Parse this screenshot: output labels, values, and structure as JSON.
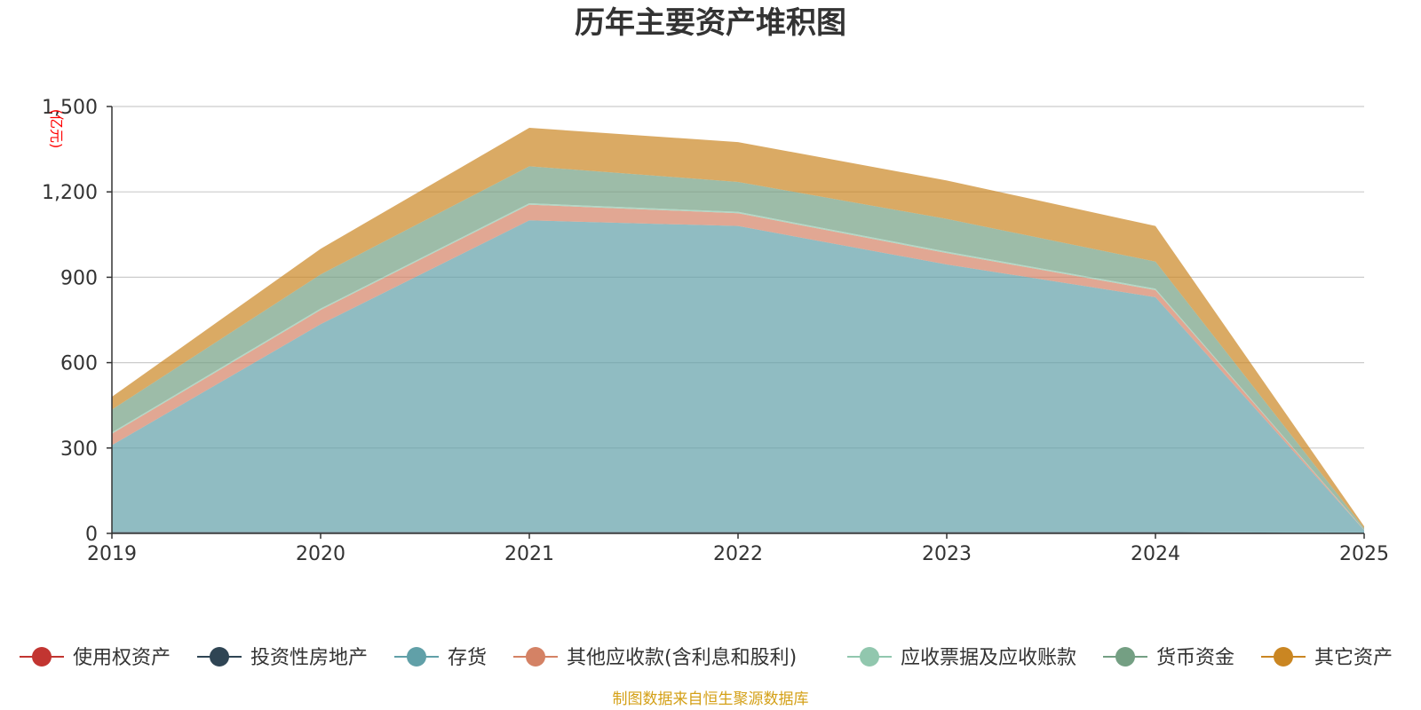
{
  "chart_data": {
    "type": "area",
    "stacked": true,
    "title": "历年主要资产堆积图",
    "ylabel": "(亿元)",
    "xlabel": "",
    "x": [
      "2019",
      "2020",
      "2021",
      "2022",
      "2023",
      "2024",
      "2025"
    ],
    "ylim": [
      0,
      1500
    ],
    "yticks": [
      "0",
      "300",
      "600",
      "900",
      "1,200",
      "1,500"
    ],
    "ytick_values": [
      0,
      300,
      600,
      900,
      1200,
      1500
    ],
    "grid": true,
    "legend_position": "bottom",
    "series": [
      {
        "name": "使用权资产",
        "color": "#c23531",
        "values": [
          0,
          0,
          0,
          0,
          0,
          0,
          0
        ]
      },
      {
        "name": "投资性房地产",
        "color": "#2f4554",
        "values": [
          5,
          5,
          5,
          5,
          5,
          5,
          1
        ]
      },
      {
        "name": "存货",
        "color": "#61a0a8",
        "values": [
          305,
          730,
          1095,
          1075,
          940,
          825,
          10
        ]
      },
      {
        "name": "其他应收款(含利息和股利)",
        "color": "#d48265",
        "values": [
          40,
          50,
          55,
          45,
          40,
          25,
          1
        ]
      },
      {
        "name": "应收票据及应收账款",
        "color": "#91c7ae",
        "values": [
          5,
          5,
          5,
          5,
          5,
          5,
          1
        ]
      },
      {
        "name": "货币资金",
        "color": "#749f83",
        "values": [
          80,
          120,
          130,
          105,
          115,
          95,
          5
        ]
      },
      {
        "name": "其它资产",
        "color": "#ca8622",
        "values": [
          45,
          90,
          135,
          140,
          135,
          125,
          7
        ]
      }
    ]
  },
  "source_note": "制图数据来自恒生聚源数据库",
  "source_note_color": "#d4a017",
  "ylabel_color": "#ff0000"
}
